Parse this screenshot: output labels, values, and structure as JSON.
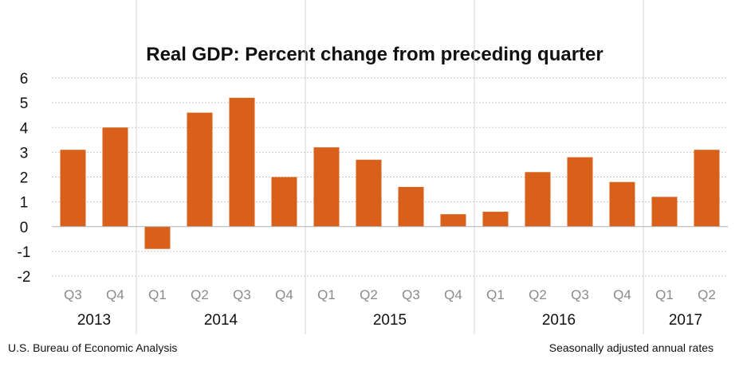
{
  "chart_data": {
    "type": "bar",
    "title": "Real GDP:  Percent change from preceding quarter",
    "categories": [
      "Q3",
      "Q4",
      "Q1",
      "Q2",
      "Q3",
      "Q4",
      "Q1",
      "Q2",
      "Q3",
      "Q4",
      "Q1",
      "Q2",
      "Q3",
      "Q4",
      "Q1",
      "Q2"
    ],
    "values": [
      3.1,
      4.0,
      -0.9,
      4.6,
      5.2,
      2.0,
      3.2,
      2.7,
      1.6,
      0.5,
      0.6,
      2.2,
      2.8,
      1.8,
      1.2,
      3.1
    ],
    "year_groups": [
      {
        "label": "2013",
        "count": 2
      },
      {
        "label": "2014",
        "count": 4
      },
      {
        "label": "2015",
        "count": 4
      },
      {
        "label": "2016",
        "count": 4
      },
      {
        "label": "2017",
        "count": 2
      }
    ],
    "yticks": [
      "6",
      "5",
      "4",
      "3",
      "2",
      "1",
      "0",
      "-1",
      "-2"
    ],
    "ylim": [
      -2,
      6
    ],
    "grid": true,
    "bar_color": "#d9601a",
    "grid_color": "#c9c9c9",
    "source": "U.S. Bureau of Economic Analysis",
    "note": "Seasonally adjusted annual  rates"
  }
}
